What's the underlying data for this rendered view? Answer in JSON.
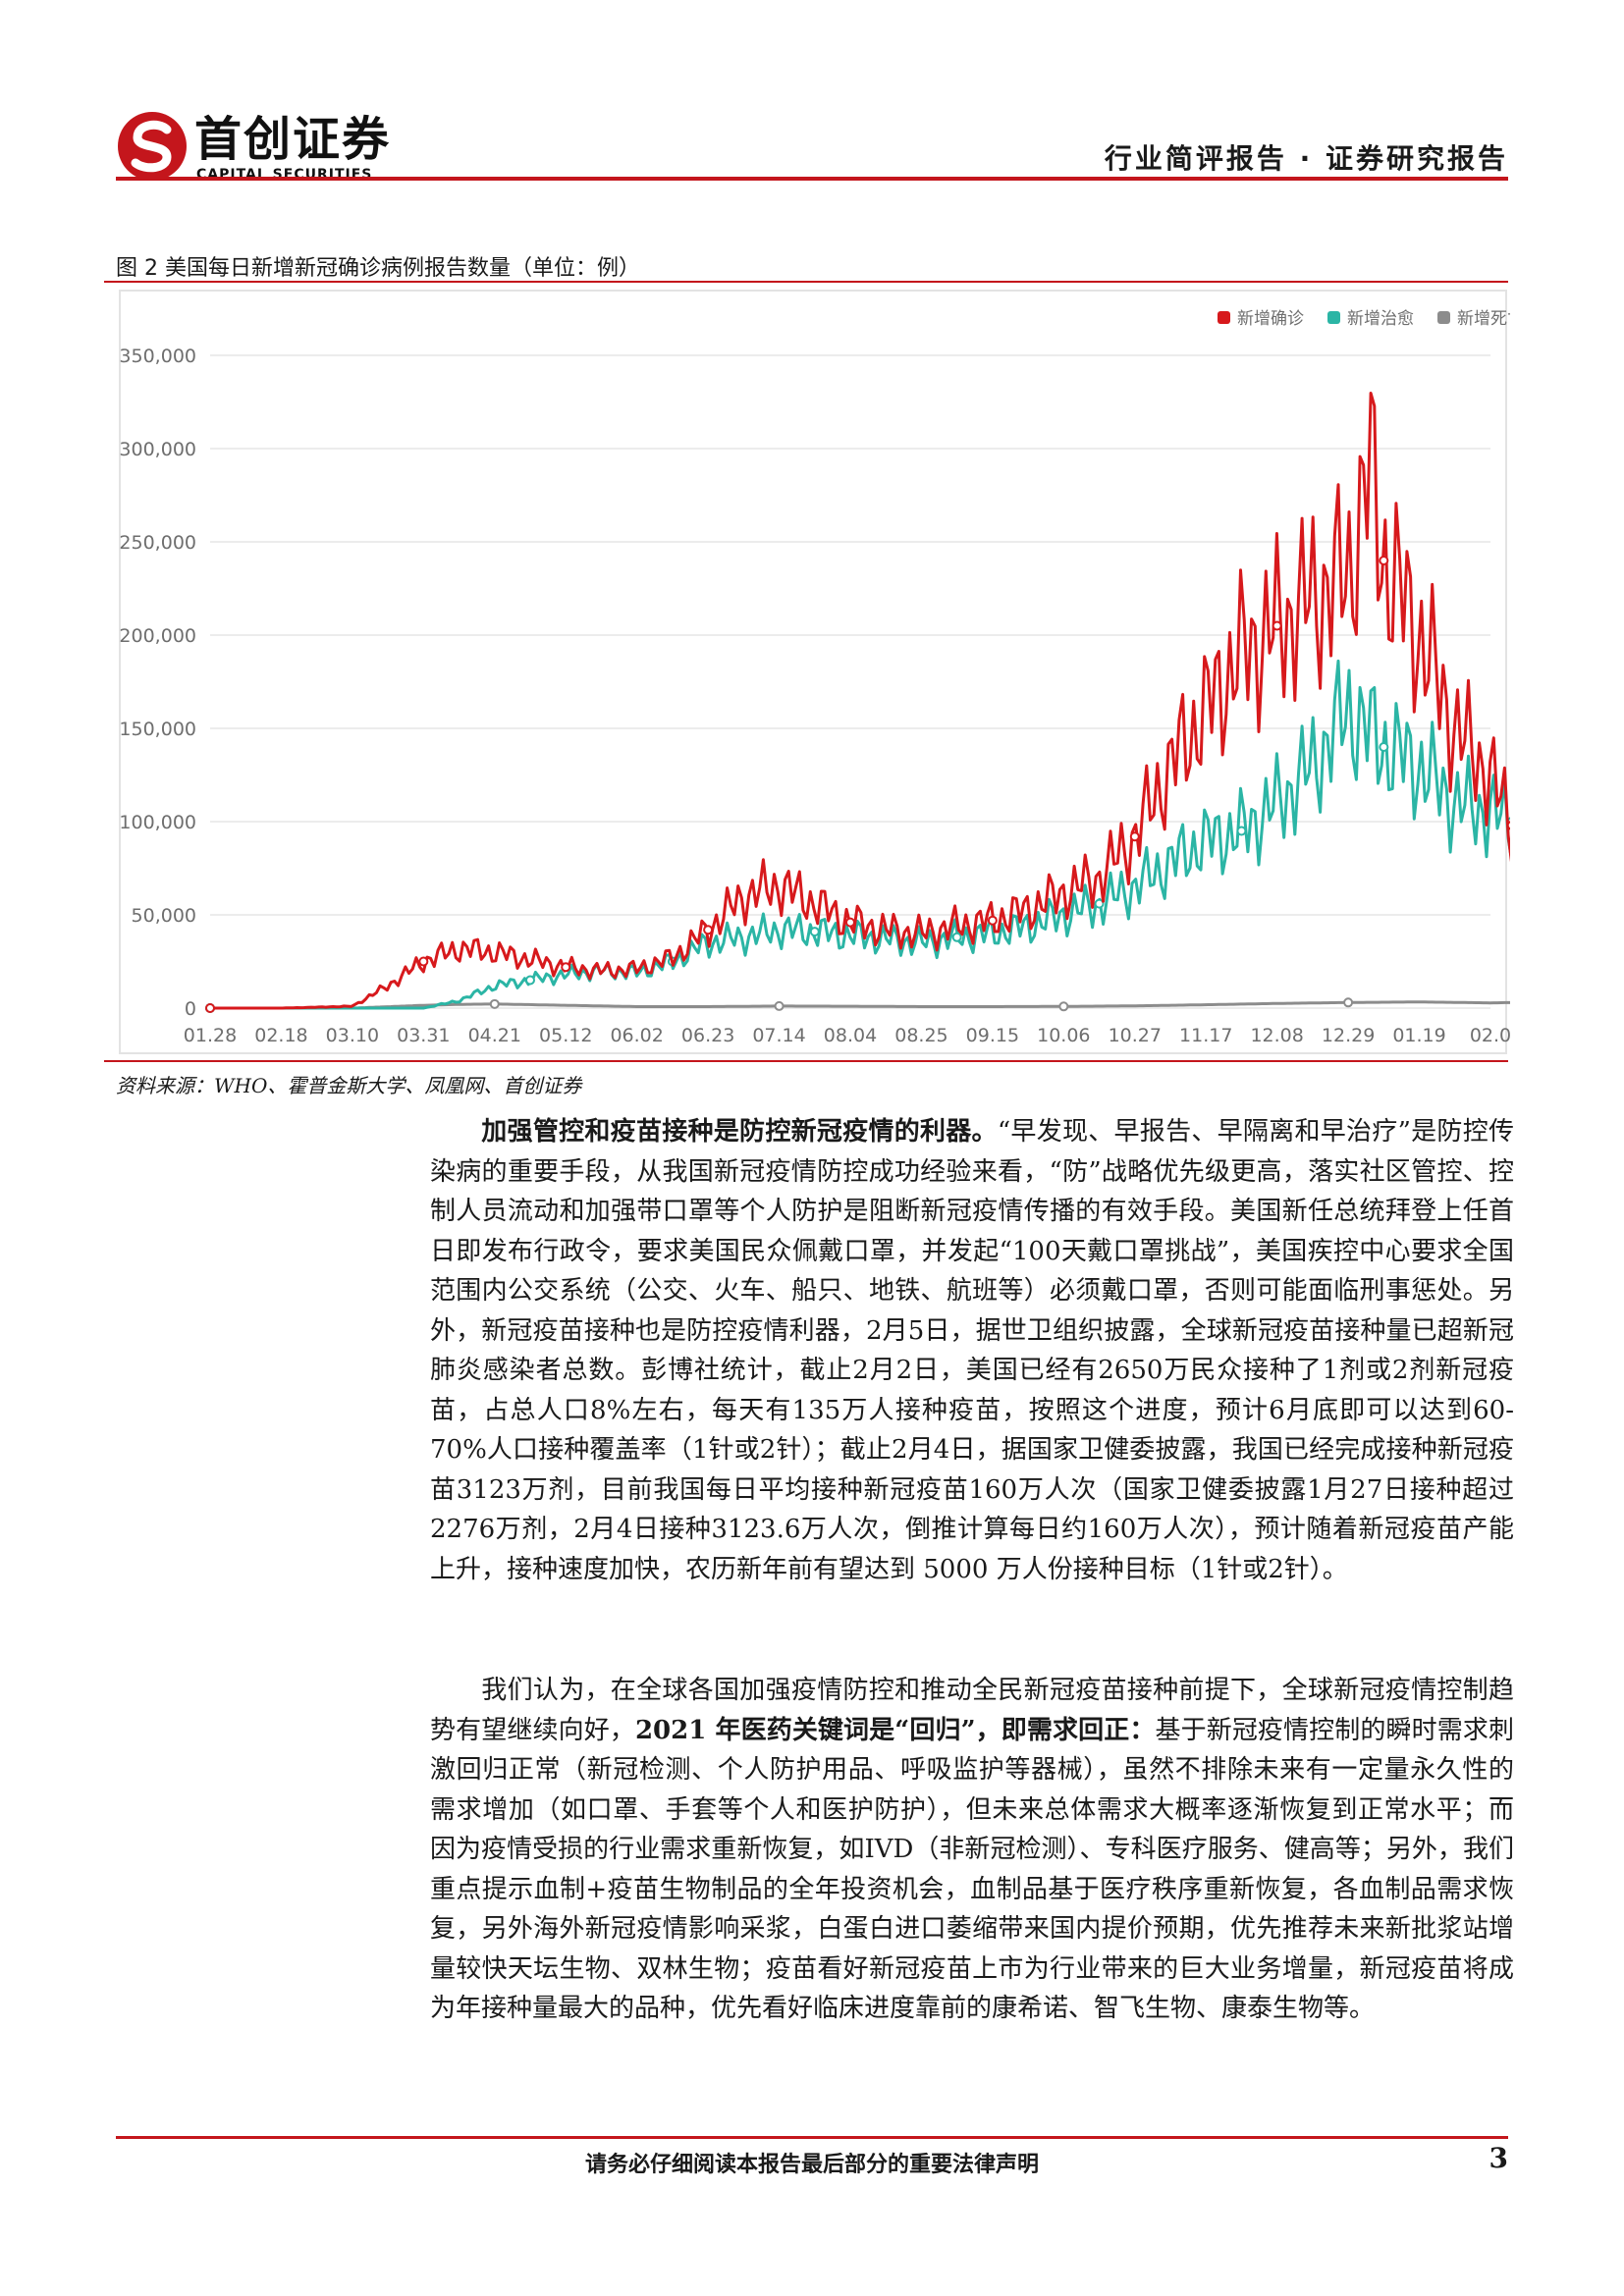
{
  "header": {
    "logo_cn": "首创证券",
    "logo_en": "CAPITAL SECURITIES",
    "report_type": "行业简评报告 · 证券研究报告",
    "accent_color": "#c4161c"
  },
  "figure": {
    "title": "图 2 美国每日新增新冠确诊病例报告数量（单位：例）",
    "source": "资料来源：WHO、霍普金斯大学、凤凰网、首创证券"
  },
  "chart_data": {
    "type": "line",
    "title": "",
    "xlabel": "",
    "ylabel": "",
    "ylim": [
      0,
      350000
    ],
    "y_ticks": [
      "0",
      "50,000",
      "100,000",
      "150,000",
      "200,000",
      "250,000",
      "300,000",
      "350,000"
    ],
    "x_ticks": [
      "01.28",
      "02.18",
      "03.10",
      "03.31",
      "04.21",
      "05.12",
      "06.02",
      "06.23",
      "07.14",
      "08.04",
      "08.25",
      "09.15",
      "10.06",
      "10.27",
      "11.17",
      "12.08",
      "12.29",
      "01.19",
      "02.0"
    ],
    "grid": "horizontal",
    "legend_position": "top-right",
    "series": [
      {
        "name": "新增确诊",
        "color": "#d7191c",
        "anchors": [
          [
            0,
            0
          ],
          [
            1,
            0
          ],
          [
            2,
            1000
          ],
          [
            2.5,
            12000
          ],
          [
            3,
            25000
          ],
          [
            3.5,
            32000
          ],
          [
            4,
            30000
          ],
          [
            4.5,
            26000
          ],
          [
            5,
            22000
          ],
          [
            5.5,
            20000
          ],
          [
            6,
            21000
          ],
          [
            6.5,
            27000
          ],
          [
            7,
            42000
          ],
          [
            7.5,
            60000
          ],
          [
            8,
            66000
          ],
          [
            8.5,
            56000
          ],
          [
            9,
            46000
          ],
          [
            9.5,
            42000
          ],
          [
            10,
            40000
          ],
          [
            10.5,
            44000
          ],
          [
            11,
            47000
          ],
          [
            11.5,
            53000
          ],
          [
            12,
            62000
          ],
          [
            12.5,
            70000
          ],
          [
            13,
            92000
          ],
          [
            13.5,
            130000
          ],
          [
            14,
            160000
          ],
          [
            14.5,
            190000
          ],
          [
            15,
            205000
          ],
          [
            15.5,
            220000
          ],
          [
            16,
            232000
          ],
          [
            16.3,
            290000
          ],
          [
            16.5,
            240000
          ],
          [
            17,
            200000
          ],
          [
            17.5,
            150000
          ],
          [
            18,
            125000
          ],
          [
            18.3,
            98000
          ]
        ]
      },
      {
        "name": "新增治愈",
        "color": "#2bb5a5",
        "anchors": [
          [
            0,
            0
          ],
          [
            3,
            0
          ],
          [
            3.5,
            4000
          ],
          [
            4,
            12000
          ],
          [
            4.5,
            15000
          ],
          [
            5,
            18000
          ],
          [
            5.5,
            20000
          ],
          [
            6,
            19000
          ],
          [
            6.5,
            25000
          ],
          [
            7,
            35000
          ],
          [
            7.5,
            38000
          ],
          [
            8,
            42000
          ],
          [
            8.5,
            41000
          ],
          [
            9,
            39000
          ],
          [
            9.5,
            37000
          ],
          [
            10,
            35000
          ],
          [
            10.5,
            38000
          ],
          [
            11,
            40000
          ],
          [
            11.5,
            44000
          ],
          [
            12,
            50000
          ],
          [
            12.5,
            56000
          ],
          [
            13,
            65000
          ],
          [
            13.5,
            78000
          ],
          [
            14,
            90000
          ],
          [
            14.5,
            95000
          ],
          [
            15,
            110000
          ],
          [
            15.5,
            130000
          ],
          [
            16,
            160000
          ],
          [
            16.5,
            140000
          ],
          [
            17,
            130000
          ],
          [
            17.5,
            110000
          ],
          [
            18,
            105000
          ],
          [
            18.3,
            100000
          ]
        ]
      },
      {
        "name": "新增死亡",
        "color": "#8c8c8c",
        "anchors": [
          [
            0,
            0
          ],
          [
            2,
            0
          ],
          [
            3,
            1500
          ],
          [
            3.5,
            2000
          ],
          [
            4,
            2200
          ],
          [
            5,
            1500
          ],
          [
            6,
            800
          ],
          [
            7,
            800
          ],
          [
            8,
            1100
          ],
          [
            9,
            1000
          ],
          [
            10,
            800
          ],
          [
            11,
            800
          ],
          [
            12,
            900
          ],
          [
            13,
            1200
          ],
          [
            14,
            1800
          ],
          [
            15,
            2500
          ],
          [
            16,
            3000
          ],
          [
            17,
            3300
          ],
          [
            18,
            2800
          ],
          [
            18.3,
            3000
          ]
        ]
      }
    ]
  },
  "body": {
    "p1_bold": "加强管控和疫苗接种是防控新冠疫情的利器。",
    "p1_text": "“早发现、早报告、早隔离和早治疗”是防控传染病的重要手段，从我国新冠疫情防控成功经验来看，“防”战略优先级更高，落实社区管控、控制人员流动和加强带口罩等个人防护是阻断新冠疫情传播的有效手段。美国新任总统拜登上任首日即发布行政令，要求美国民众佩戴口罩，并发起“100天戴口罩挑战”，美国疾控中心要求全国范围内公交系统（公交、火车、船只、地铁、航班等）必须戴口罩，否则可能面临刑事惩处。另外，新冠疫苗接种也是防控疫情利器，2月5日，据世卫组织披露，全球新冠疫苗接种量已超新冠肺炎感染者总数。彭博社统计，截止2月2日，美国已经有2650万民众接种了1剂或2剂新冠疫苗，占总人口8%左右，每天有135万人接种疫苗，按照这个进度，预计6月底即可以达到60-70%人口接种覆盖率（1针或2针）；截止2月4日，据国家卫健委披露，我国已经完成接种新冠疫苗3123万剂，目前我国每日平均接种新冠疫苗160万人次（国家卫健委披露1月27日接种超过2276万剂，2月4日接种3123.6万人次，倒推计算每日约160万人次），预计随着新冠疫苗产能上升，接种速度加快，农历新年前有望达到 5000 万人份接种目标（1针或2针）。",
    "p2_text1": "我们认为，在全球各国加强疫情防控和推动全民新冠疫苗接种前提下，全球新冠疫情控制趋势有望继续向好，",
    "p2_bold": "2021 年医药关键词是“回归”，即需求回正：",
    "p2_text2": "基于新冠疫情控制的瞬时需求刺激回归正常（新冠检测、个人防护用品、呼吸监护等器械），虽然不排除未来有一定量永久性的需求增加（如口罩、手套等个人和医护防护），但未来总体需求大概率逐渐恢复到正常水平；而因为疫情受损的行业需求重新恢复，如IVD（非新冠检测）、专科医疗服务、健高等；另外，我们重点提示血制+疫苗生物制品的全年投资机会，血制品基于医疗秩序重新恢复，各血制品需求恢复，另外海外新冠疫情影响采浆，白蛋白进口萎缩带来国内提价预期，优先推荐未来新批浆站增量较快天坛生物、双林生物；疫苗看好新冠疫苗上市为行业带来的巨大业务增量，新冠疫苗将成为年接种量最大的品种，优先看好临床进度靠前的康希诺、智飞生物、康泰生物等。"
  },
  "footer": {
    "note": "请务必仔细阅读本报告最后部分的重要法律声明",
    "page": "3"
  }
}
